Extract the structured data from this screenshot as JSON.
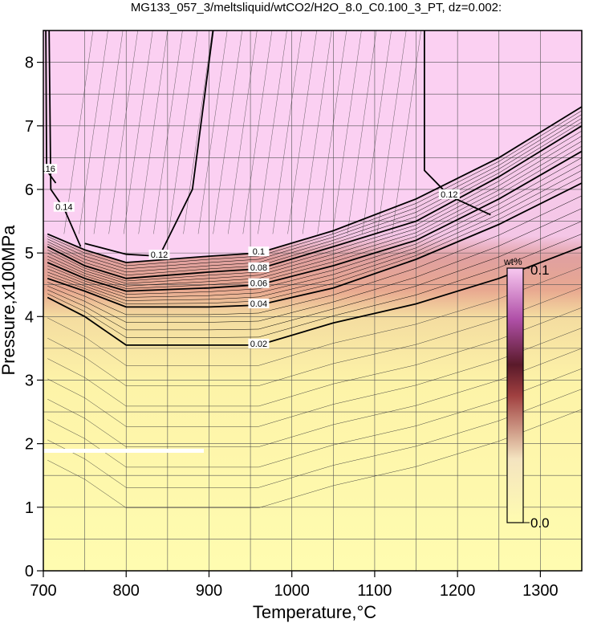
{
  "chart_data": {
    "type": "heatmap",
    "title": "MG133_057_3/meltsliquid/wtCO2/H2O_8.0_C0.100_3_PT, dz=0.002:",
    "xlabel": "Temperature,°C",
    "ylabel": "Pressure,x100MPa",
    "xlim": [
      700,
      1350
    ],
    "ylim": [
      0,
      8.5
    ],
    "xticks": [
      700,
      800,
      900,
      1000,
      1100,
      1200,
      1300
    ],
    "yticks": [
      0,
      1,
      2,
      3,
      4,
      5,
      6,
      7,
      8
    ],
    "grid": true,
    "colorbar": {
      "unit": "wt%",
      "max_label": "0.1",
      "min_label": "0.0",
      "range": [
        0,
        0.1
      ],
      "colors": [
        "#fffcb0",
        "#f0d8a0",
        "#8a3a3a",
        "#d070c8",
        "#fbd0f2"
      ]
    },
    "contour_levels": [
      {
        "level": 0.02,
        "label": "0.02",
        "points": [
          [
            705,
            4.3
          ],
          [
            750,
            4.0
          ],
          [
            800,
            3.55
          ],
          [
            900,
            3.55
          ],
          [
            960,
            3.55
          ],
          [
            1050,
            3.9
          ],
          [
            1150,
            4.2
          ],
          [
            1250,
            4.6
          ],
          [
            1350,
            5.1
          ]
        ]
      },
      {
        "level": 0.04,
        "label": "0.04",
        "points": [
          [
            705,
            4.6
          ],
          [
            750,
            4.4
          ],
          [
            800,
            4.15
          ],
          [
            900,
            4.15
          ],
          [
            960,
            4.18
          ],
          [
            1050,
            4.45
          ],
          [
            1150,
            4.9
          ],
          [
            1250,
            5.45
          ],
          [
            1350,
            6.1
          ]
        ]
      },
      {
        "level": 0.06,
        "label": "0.06",
        "points": [
          [
            705,
            4.85
          ],
          [
            750,
            4.6
          ],
          [
            800,
            4.4
          ],
          [
            900,
            4.45
          ],
          [
            960,
            4.5
          ],
          [
            1050,
            4.8
          ],
          [
            1150,
            5.2
          ],
          [
            1250,
            5.85
          ],
          [
            1350,
            6.6
          ]
        ]
      },
      {
        "level": 0.08,
        "label": "0.08",
        "points": [
          [
            705,
            5.1
          ],
          [
            750,
            4.8
          ],
          [
            800,
            4.6
          ],
          [
            900,
            4.7
          ],
          [
            960,
            4.75
          ],
          [
            1050,
            5.1
          ],
          [
            1150,
            5.5
          ],
          [
            1250,
            6.2
          ],
          [
            1350,
            7.0
          ]
        ]
      },
      {
        "level": 0.1,
        "label": "0.1",
        "points": [
          [
            705,
            5.3
          ],
          [
            750,
            5.05
          ],
          [
            800,
            4.85
          ],
          [
            900,
            4.95
          ],
          [
            960,
            5.0
          ],
          [
            1050,
            5.35
          ],
          [
            1150,
            5.85
          ],
          [
            1250,
            6.5
          ],
          [
            1350,
            7.3
          ]
        ]
      },
      {
        "level": 0.12,
        "label": "0.12",
        "points": [
          [
            750,
            5.15
          ],
          [
            800,
            4.98
          ],
          [
            840,
            4.95
          ],
          [
            880,
            6.0
          ],
          [
            905,
            8.5
          ]
        ]
      }
    ],
    "extra_contours": [
      {
        "label": "0.12",
        "points": [
          [
            1160,
            8.5
          ],
          [
            1160,
            6.3
          ],
          [
            1190,
            5.9
          ],
          [
            1240,
            5.6
          ]
        ]
      },
      {
        "label": "0.14",
        "points": [
          [
            707,
            8.5
          ],
          [
            709,
            6.0
          ],
          [
            725,
            5.7
          ],
          [
            745,
            5.1
          ]
        ]
      },
      {
        "label": "0.16",
        "points": [
          [
            703,
            8.5
          ],
          [
            704,
            6.3
          ],
          [
            715,
            6.1
          ]
        ]
      }
    ]
  }
}
